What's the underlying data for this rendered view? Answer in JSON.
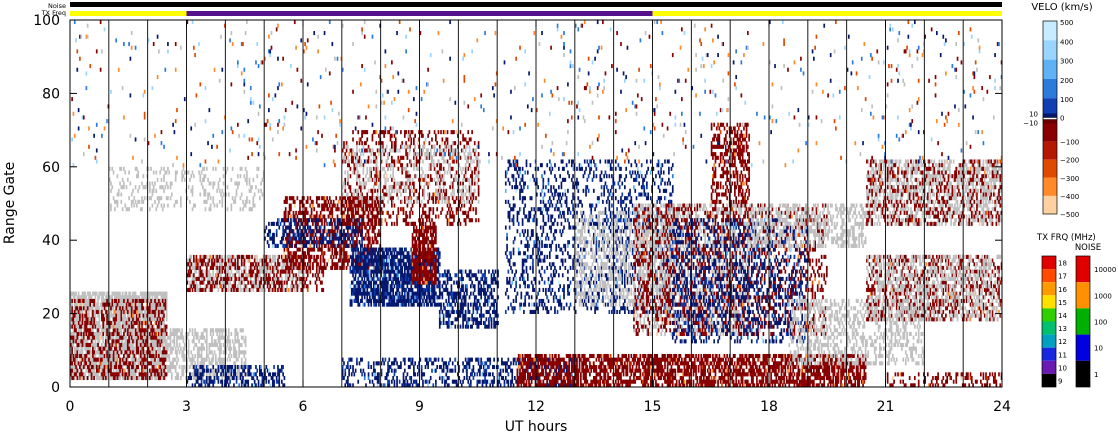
{
  "chart_data": {
    "type": "heatmap",
    "xlabel": "UT hours",
    "ylabel": "Range Gate",
    "xlim": [
      0,
      24
    ],
    "ylim": [
      0,
      100
    ],
    "x_ticks": [
      0,
      3,
      6,
      9,
      12,
      15,
      18,
      21,
      24
    ],
    "y_ticks": [
      0,
      20,
      40,
      60,
      80,
      100
    ],
    "hour_gridlines": [
      1,
      2,
      3,
      4,
      5,
      6,
      7,
      8,
      9,
      10,
      11,
      12,
      13,
      14,
      15,
      16,
      17,
      18,
      19,
      20,
      21,
      22,
      23
    ],
    "status_bars": {
      "noise_label": "Noise",
      "txfreq_label": "TX Freq",
      "noise_color": "#000000",
      "txfreq_segments": [
        {
          "start": 0,
          "end": 3,
          "color": "#ffff00"
        },
        {
          "start": 3,
          "end": 15,
          "color": "#55128c"
        },
        {
          "start": 15,
          "end": 24,
          "color": "#ffff00"
        }
      ]
    },
    "velocity_scale": {
      "title": "VELO (km/s)",
      "stops": [
        {
          "v": 500,
          "color": "#c8ecff"
        },
        {
          "v": 400,
          "color": "#99d5ff"
        },
        {
          "v": 300,
          "color": "#5fb3f5"
        },
        {
          "v": 200,
          "color": "#2b7bdc"
        },
        {
          "v": 100,
          "color": "#0f3fb0"
        },
        {
          "v": 10,
          "color": "#06186e"
        },
        {
          "v": -10,
          "color": "#6b0000"
        },
        {
          "v": -100,
          "color": "#8a0000"
        },
        {
          "v": -200,
          "color": "#b41800"
        },
        {
          "v": -300,
          "color": "#e04a00"
        },
        {
          "v": -400,
          "color": "#ff8a2a"
        },
        {
          "v": -500,
          "color": "#ffd0a0"
        }
      ],
      "labels": [
        "500",
        "400",
        "300",
        "200",
        "100",
        "10",
        "0",
        "−10",
        "−100",
        "−200",
        "−300",
        "−400",
        "−500"
      ],
      "ground_scatter_color": "#c0c0c0"
    },
    "txfreq_scale": {
      "title": "TX FRQ (MHz)",
      "values": [
        18,
        17,
        16,
        15,
        14,
        13,
        12,
        11,
        10,
        9
      ],
      "colors": [
        "#e00000",
        "#ff4a00",
        "#ff9a00",
        "#ffe000",
        "#30d000",
        "#00c070",
        "#00a0c0",
        "#1828e0",
        "#6a1ab0",
        "#000000"
      ]
    },
    "noise_scale": {
      "title": "NOISE",
      "values": [
        "10000",
        "1000",
        "100",
        "10",
        "1"
      ],
      "colors": [
        "#e00000",
        "#ff9000",
        "#00b000",
        "#0000e0",
        "#000000"
      ]
    },
    "scatter_regions": [
      {
        "t0": 0.0,
        "t1": 2.5,
        "g0": 2,
        "g1": 26,
        "kind": "ground",
        "density": 0.8
      },
      {
        "t0": 0.0,
        "t1": 2.5,
        "g0": 2,
        "g1": 24,
        "kind": "neg",
        "density": 0.35
      },
      {
        "t0": 2.5,
        "t1": 4.5,
        "g0": 2,
        "g1": 16,
        "kind": "ground",
        "density": 0.5
      },
      {
        "t0": 3.0,
        "t1": 5.5,
        "g0": 0,
        "g1": 6,
        "kind": "pos",
        "density": 0.45
      },
      {
        "t0": 1.0,
        "t1": 5.0,
        "g0": 48,
        "g1": 60,
        "kind": "ground",
        "density": 0.2
      },
      {
        "t0": 3.0,
        "t1": 6.0,
        "g0": 26,
        "g1": 36,
        "kind": "ground",
        "density": 0.5
      },
      {
        "t0": 3.0,
        "t1": 6.5,
        "g0": 26,
        "g1": 36,
        "kind": "neg",
        "density": 0.35
      },
      {
        "t0": 5.5,
        "t1": 8.0,
        "g0": 32,
        "g1": 52,
        "kind": "neg",
        "density": 0.45
      },
      {
        "t0": 5.0,
        "t1": 7.5,
        "g0": 38,
        "g1": 46,
        "kind": "pos",
        "density": 0.4
      },
      {
        "t0": 7.0,
        "t1": 10.5,
        "g0": 44,
        "g1": 70,
        "kind": "neg",
        "density": 0.25
      },
      {
        "t0": 7.0,
        "t1": 10.5,
        "g0": 50,
        "g1": 66,
        "kind": "ground",
        "density": 0.2
      },
      {
        "t0": 7.2,
        "t1": 9.5,
        "g0": 22,
        "g1": 38,
        "kind": "pos",
        "density": 0.75
      },
      {
        "t0": 8.8,
        "t1": 9.4,
        "g0": 28,
        "g1": 45,
        "kind": "neg",
        "density": 0.75
      },
      {
        "t0": 9.5,
        "t1": 11.0,
        "g0": 16,
        "g1": 32,
        "kind": "pos",
        "density": 0.45
      },
      {
        "t0": 7.0,
        "t1": 13.0,
        "g0": 0,
        "g1": 8,
        "kind": "pos",
        "density": 0.35
      },
      {
        "t0": 11.2,
        "t1": 15.5,
        "g0": 20,
        "g1": 62,
        "kind": "pos",
        "density": 0.25
      },
      {
        "t0": 13.0,
        "t1": 15.5,
        "g0": 22,
        "g1": 48,
        "kind": "ground",
        "density": 0.3
      },
      {
        "t0": 11.5,
        "t1": 20.5,
        "g0": 0,
        "g1": 9,
        "kind": "neg",
        "density": 0.65
      },
      {
        "t0": 14.5,
        "t1": 17.5,
        "g0": 14,
        "g1": 50,
        "kind": "ground",
        "density": 0.4
      },
      {
        "t0": 14.5,
        "t1": 19.5,
        "g0": 14,
        "g1": 50,
        "kind": "neg",
        "density": 0.25
      },
      {
        "t0": 15.5,
        "t1": 19.0,
        "g0": 12,
        "g1": 46,
        "kind": "pos",
        "density": 0.25
      },
      {
        "t0": 16.5,
        "t1": 17.5,
        "g0": 50,
        "g1": 72,
        "kind": "neg",
        "density": 0.45
      },
      {
        "t0": 17.5,
        "t1": 20.5,
        "g0": 38,
        "g1": 50,
        "kind": "ground",
        "density": 0.4
      },
      {
        "t0": 18.5,
        "t1": 22.0,
        "g0": 6,
        "g1": 24,
        "kind": "ground",
        "density": 0.35
      },
      {
        "t0": 20.5,
        "t1": 24.0,
        "g0": 18,
        "g1": 36,
        "kind": "neg",
        "density": 0.35
      },
      {
        "t0": 20.5,
        "t1": 24.0,
        "g0": 18,
        "g1": 36,
        "kind": "ground",
        "density": 0.3
      },
      {
        "t0": 20.5,
        "t1": 24.0,
        "g0": 44,
        "g1": 62,
        "kind": "ground",
        "density": 0.5
      },
      {
        "t0": 20.5,
        "t1": 24.0,
        "g0": 44,
        "g1": 62,
        "kind": "neg",
        "density": 0.2
      },
      {
        "t0": 21.0,
        "t1": 24.0,
        "g0": 0,
        "g1": 4,
        "kind": "neg",
        "density": 0.3
      },
      {
        "t0": 0.0,
        "t1": 24.0,
        "g0": 60,
        "g1": 100,
        "kind": "sparse",
        "density": 0.025
      }
    ]
  }
}
